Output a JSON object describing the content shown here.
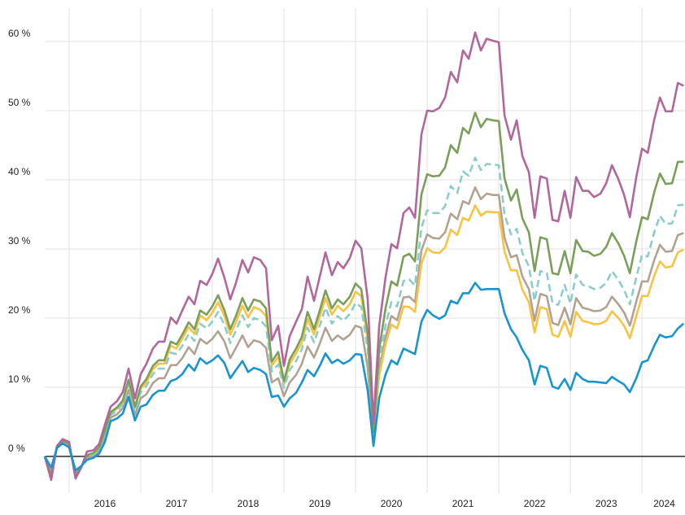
{
  "chart_data": {
    "type": "line",
    "x": [
      2015.66,
      2015.75,
      2015.83,
      2015.91,
      2016.0,
      2016.09,
      2016.17,
      2016.25,
      2016.34,
      2016.42,
      2016.5,
      2016.58,
      2016.67,
      2016.75,
      2016.83,
      2016.92,
      2017.0,
      2017.08,
      2017.17,
      2017.25,
      2017.33,
      2017.42,
      2017.5,
      2017.58,
      2017.67,
      2017.75,
      2017.83,
      2017.92,
      2018.0,
      2018.08,
      2018.17,
      2018.25,
      2018.33,
      2018.42,
      2018.5,
      2018.58,
      2018.67,
      2018.75,
      2018.83,
      2018.92,
      2019.0,
      2019.08,
      2019.17,
      2019.25,
      2019.33,
      2019.42,
      2019.5,
      2019.58,
      2019.67,
      2019.75,
      2019.83,
      2019.92,
      2020.0,
      2020.08,
      2020.17,
      2020.25,
      2020.33,
      2020.42,
      2020.5,
      2020.58,
      2020.67,
      2020.75,
      2020.83,
      2020.92,
      2021.0,
      2021.08,
      2021.17,
      2021.25,
      2021.33,
      2021.42,
      2021.5,
      2021.58,
      2021.67,
      2021.75,
      2021.83,
      2021.92,
      2022.0,
      2022.08,
      2022.17,
      2022.25,
      2022.33,
      2022.42,
      2022.5,
      2022.58,
      2022.67,
      2022.75,
      2022.83,
      2022.92,
      2023.0,
      2023.08,
      2023.17,
      2023.25,
      2023.33,
      2023.42,
      2023.5,
      2023.58,
      2023.67,
      2023.75,
      2023.83,
      2023.92,
      2024.0,
      2024.08,
      2024.17,
      2024.25,
      2024.33,
      2024.42,
      2024.5,
      2024.58
    ],
    "series": [
      {
        "color": "#b2a291",
        "line_style": "solid",
        "values": [
          0,
          -2.1,
          1.3,
          2.1,
          1.5,
          -2.3,
          -1.5,
          -0.2,
          0.1,
          0.8,
          2.7,
          5.6,
          6.1,
          7.0,
          9.6,
          6.0,
          8.4,
          9.0,
          10.6,
          11.3,
          11.3,
          13.2,
          13.2,
          14.2,
          15.8,
          14.8,
          17.0,
          16.3,
          17.0,
          18.1,
          16.6,
          14.2,
          15.7,
          17.5,
          15.8,
          16.8,
          16.5,
          15.7,
          10.7,
          11.3,
          8.7,
          10.7,
          11.8,
          13.4,
          15.9,
          14.3,
          16.3,
          18.6,
          16.7,
          17.5,
          16.9,
          17.6,
          18.9,
          18.6,
          12.8,
          2.3,
          12.4,
          17.3,
          20.3,
          19.7,
          23.0,
          23.1,
          22.3,
          29.8,
          32.1,
          31.6,
          31.5,
          32.4,
          35.1,
          34.3,
          36.9,
          36.5,
          38.9,
          37.2,
          38.0,
          37.8,
          37.8,
          31.6,
          28.8,
          29.1,
          26.0,
          24.2,
          19.6,
          23.5,
          23.2,
          19.3,
          19.0,
          21.5,
          19.1,
          22.9,
          21.5,
          21.3,
          21.0,
          21.1,
          21.6,
          23.1,
          22.0,
          20.8,
          18.9,
          22.4,
          25.3,
          25.3,
          28.4,
          30.6,
          29.6,
          29.7,
          32.0,
          32.3
        ]
      },
      {
        "color": "#f6c344",
        "line_style": "solid",
        "values": [
          0,
          -2.6,
          1.4,
          2.2,
          1.7,
          -2.7,
          -1.5,
          0.2,
          0.4,
          1.2,
          3.5,
          6.3,
          6.9,
          7.9,
          10.9,
          7.0,
          9.8,
          10.7,
          12.6,
          13.4,
          13.4,
          16.0,
          15.6,
          17.0,
          18.7,
          17.7,
          20.4,
          19.7,
          20.8,
          22.3,
          20.3,
          17.6,
          19.4,
          21.8,
          20.1,
          21.6,
          21.2,
          20.3,
          13.1,
          14.4,
          10.4,
          13.4,
          14.9,
          16.5,
          19.9,
          17.6,
          20.2,
          22.9,
          20.5,
          21.8,
          21.0,
          22.0,
          23.8,
          23.2,
          16.8,
          3.3,
          11.7,
          16.3,
          19.1,
          18.5,
          21.7,
          21.6,
          20.9,
          27.9,
          30.1,
          29.5,
          29.4,
          30.2,
          32.8,
          32.0,
          34.5,
          34.1,
          36.3,
          34.8,
          35.4,
          35.3,
          35.3,
          29.6,
          26.9,
          26.9,
          24.1,
          22.3,
          17.9,
          21.6,
          21.3,
          17.6,
          17.3,
          19.6,
          17.3,
          20.9,
          19.6,
          19.4,
          19.1,
          19.2,
          19.6,
          21.0,
          20.0,
          18.9,
          17.1,
          20.3,
          23.2,
          23.2,
          26.1,
          28.2,
          27.3,
          27.5,
          29.5,
          29.9
        ]
      },
      {
        "color": "#8dcdc9",
        "line_style": "dashed",
        "values": [
          0,
          -2.4,
          1.3,
          2.2,
          1.7,
          -2.5,
          -1.5,
          0,
          0.3,
          1.0,
          3.2,
          6.0,
          6.6,
          7.6,
          10.4,
          6.6,
          9.3,
          10.2,
          11.9,
          12.7,
          12.7,
          15.0,
          14.8,
          16.0,
          17.7,
          16.7,
          19.2,
          18.5,
          19.5,
          20.9,
          19.0,
          16.4,
          18.2,
          20.4,
          18.7,
          20.0,
          19.7,
          18.8,
          12.3,
          13.3,
          9.9,
          12.5,
          13.8,
          15.5,
          18.6,
          16.5,
          18.9,
          21.5,
          19.2,
          20.3,
          19.6,
          20.6,
          22.2,
          21.6,
          15.4,
          3.0,
          13.7,
          19.0,
          22.3,
          21.7,
          25.4,
          25.6,
          24.7,
          33.1,
          35.6,
          35.2,
          35.2,
          36.2,
          39.1,
          38.1,
          41.2,
          40.6,
          43.2,
          41.4,
          42.3,
          42.2,
          42.1,
          35.0,
          32.1,
          32.9,
          29.4,
          27.5,
          22.5,
          26.8,
          26.5,
          22.2,
          21.9,
          24.8,
          22.1,
          26.3,
          24.8,
          24.6,
          24.2,
          24.4,
          25.1,
          26.8,
          25.5,
          24.1,
          22.0,
          25.9,
          29.1,
          28.9,
          32.4,
          34.8,
          33.6,
          33.7,
          36.3,
          36.4
        ]
      },
      {
        "color": "#7b9f5b",
        "line_style": "solid",
        "values": [
          0,
          -2.7,
          1.4,
          2.3,
          1.8,
          -2.7,
          -1.5,
          0.2,
          0.5,
          1.3,
          3.7,
          6.4,
          7.1,
          8.1,
          11.1,
          7.2,
          10.1,
          11.2,
          13.1,
          13.9,
          13.9,
          16.6,
          16.2,
          17.6,
          19.4,
          18.4,
          21.1,
          20.5,
          21.7,
          23.3,
          21.1,
          18.4,
          20.3,
          22.9,
          21.1,
          22.7,
          22.4,
          21.4,
          13.7,
          15.1,
          10.9,
          14.0,
          15.6,
          17.3,
          20.9,
          18.4,
          21.1,
          24.0,
          21.4,
          22.7,
          22.0,
          23.1,
          25.0,
          24.2,
          17.7,
          3.5,
          15.5,
          21.5,
          25.3,
          24.7,
          28.9,
          29.3,
          28.2,
          37.9,
          40.8,
          40.5,
          40.6,
          41.8,
          45.0,
          43.9,
          47.5,
          46.7,
          49.7,
          47.6,
          48.8,
          48.6,
          48.5,
          40.2,
          37.0,
          38.6,
          34.4,
          32.4,
          26.8,
          31.7,
          31.4,
          26.5,
          26.3,
          29.7,
          26.5,
          31.3,
          29.7,
          29.6,
          29.0,
          29.3,
          30.3,
          32.3,
          30.8,
          29.0,
          26.5,
          31.1,
          34.6,
          34.3,
          38.2,
          40.9,
          39.4,
          39.5,
          42.6,
          42.6
        ]
      },
      {
        "color": "#b2679b",
        "line_style": "solid",
        "values": [
          0,
          -3.4,
          1.5,
          2.5,
          2.1,
          -3.2,
          -1.6,
          0.7,
          0.9,
          1.8,
          4.6,
          7.2,
          8,
          9.3,
          12.7,
          8.4,
          11.9,
          13.4,
          15.6,
          16.6,
          16.6,
          20.1,
          19.2,
          21.1,
          23.1,
          22,
          25.4,
          24.8,
          26.4,
          28.6,
          25.8,
          22.7,
          25.1,
          28.4,
          26.6,
          28.8,
          28.4,
          27.2,
          16.8,
          18.9,
          13.1,
          17.4,
          19.5,
          21.3,
          26,
          22.5,
          26,
          29.5,
          26.2,
          28.1,
          27.2,
          28.7,
          31.2,
          30.1,
          22.7,
          4.8,
          18.9,
          26,
          30.7,
          30.1,
          35.2,
          36,
          34.5,
          46.6,
          50,
          49.9,
          50.4,
          51.9,
          55.6,
          54.1,
          58.7,
          57.5,
          61.3,
          58.7,
          60.4,
          60.1,
          59.9,
          49.3,
          45.8,
          48.6,
          43.4,
          41.1,
          34.5,
          40.5,
          40.2,
          34.2,
          34,
          38.4,
          34.5,
          40.4,
          38.4,
          38.4,
          37.5,
          38,
          39.5,
          42.1,
          40.1,
          37.8,
          34.6,
          40.4,
          44.5,
          43.9,
          48.7,
          51.9,
          49.9,
          49.9,
          54,
          53.6
        ]
      },
      {
        "color": "#1895d0",
        "line_style": "solid",
        "values": [
          0,
          -1.6,
          1.2,
          1.9,
          1.3,
          -2,
          -1.4,
          -0.5,
          -0.2,
          0.4,
          2.1,
          5.1,
          5.5,
          6.2,
          8.6,
          5.2,
          7.2,
          7.5,
          8.9,
          9.5,
          9.5,
          10.9,
          11.2,
          11.9,
          13.3,
          12.4,
          14.2,
          13.4,
          13.9,
          14.6,
          13.5,
          11.3,
          12.5,
          13.8,
          12.2,
          12.8,
          12.5,
          11.9,
          8.6,
          8.8,
          7.2,
          8.4,
          9.2,
          10.7,
          12.5,
          11.6,
          13.1,
          14.9,
          13.5,
          14,
          13.4,
          13.9,
          14.8,
          14.7,
          9.5,
          1.5,
          8.4,
          11.9,
          13.9,
          13.3,
          15.6,
          15.2,
          14.8,
          19.5,
          21.2,
          20.4,
          19.9,
          20.4,
          22.5,
          22.1,
          23.6,
          23.6,
          25.1,
          24.1,
          24.2,
          24.2,
          24.2,
          20.7,
          18.4,
          17.2,
          15.4,
          13.9,
          10.4,
          13.1,
          12.8,
          10.1,
          9.8,
          11.2,
          9.6,
          12.1,
          11.2,
          10.8,
          10.8,
          10.7,
          10.6,
          11.5,
          10.9,
          10.4,
          9.3,
          11.3,
          13.6,
          13.9,
          16,
          17.6,
          17.2,
          17.4,
          18.5,
          19.2
        ]
      }
    ],
    "xlim": [
      2015.66,
      2024.6
    ],
    "ylim": [
      -5,
      65
    ],
    "yticks": [
      {
        "value": 0,
        "label": "0 %"
      },
      {
        "value": 10,
        "label": "10 %"
      },
      {
        "value": 20,
        "label": "20 %"
      },
      {
        "value": 30,
        "label": "30 %"
      },
      {
        "value": 40,
        "label": "40 %"
      },
      {
        "value": 50,
        "label": "50 %"
      },
      {
        "value": 60,
        "label": "60 %"
      }
    ],
    "xgrid": [
      2016,
      2017,
      2018,
      2019,
      2020,
      2021,
      2022,
      2023,
      2024
    ],
    "xticks": [
      {
        "value": 2016.5,
        "label": "2016"
      },
      {
        "value": 2017.5,
        "label": "2017"
      },
      {
        "value": 2018.5,
        "label": "2018"
      },
      {
        "value": 2019.5,
        "label": "2019"
      },
      {
        "value": 2020.5,
        "label": "2020"
      },
      {
        "value": 2021.5,
        "label": "2021"
      },
      {
        "value": 2022.5,
        "label": "2022"
      },
      {
        "value": 2023.5,
        "label": "2023"
      },
      {
        "value": 2024.31,
        "label": "2024"
      }
    ],
    "grid": true
  }
}
